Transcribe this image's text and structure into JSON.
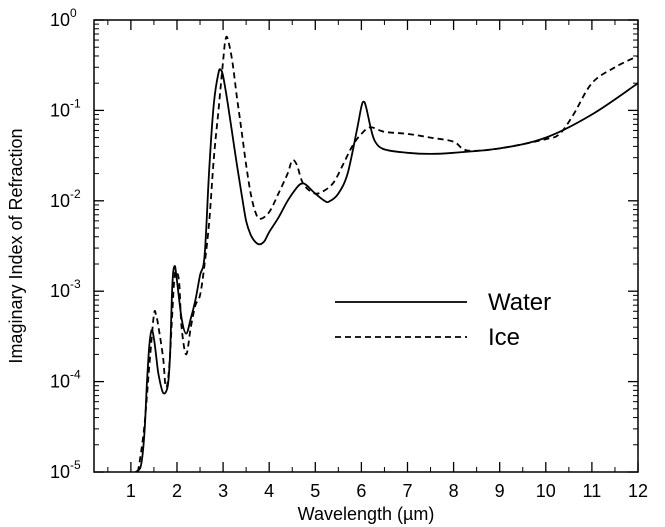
{
  "chart_data": {
    "type": "line",
    "title": "",
    "xlabel": "Wavelength (µm)",
    "ylabel": "Imaginary Index of Refraction",
    "x_scale": "linear",
    "y_scale": "log",
    "xlim": [
      0.2,
      12
    ],
    "ylim": [
      1e-05,
      1
    ],
    "x_ticks": [
      1,
      2,
      3,
      4,
      5,
      6,
      7,
      8,
      9,
      10,
      11,
      12
    ],
    "x_tick_labels": [
      "1",
      "2",
      "3",
      "4",
      "5",
      "6",
      "7",
      "8",
      "9",
      "10",
      "11",
      "12"
    ],
    "y_ticks": [
      {
        "value": 1e-05,
        "base": "10",
        "exp": "-5"
      },
      {
        "value": 0.0001,
        "base": "10",
        "exp": "-4"
      },
      {
        "value": 0.001,
        "base": "10",
        "exp": "-3"
      },
      {
        "value": 0.01,
        "base": "10",
        "exp": "-2"
      },
      {
        "value": 0.1,
        "base": "10",
        "exp": "-1"
      },
      {
        "value": 1,
        "base": "10",
        "exp": "0"
      }
    ],
    "grid": false,
    "legend_position": "center-right",
    "series": [
      {
        "name": "Water",
        "style": "solid",
        "color": "#000000",
        "points": [
          [
            1.1,
            1e-05
          ],
          [
            1.2,
            1.1e-05
          ],
          [
            1.25,
            1.5e-05
          ],
          [
            1.3,
            3e-05
          ],
          [
            1.35,
            0.0001
          ],
          [
            1.4,
            0.00025
          ],
          [
            1.45,
            0.00037
          ],
          [
            1.5,
            0.0003
          ],
          [
            1.55,
            0.00019
          ],
          [
            1.6,
            0.00012
          ],
          [
            1.7,
            7.5e-05
          ],
          [
            1.8,
            9e-05
          ],
          [
            1.85,
            0.0002
          ],
          [
            1.9,
            0.0012
          ],
          [
            1.95,
            0.0019
          ],
          [
            2.0,
            0.0013
          ],
          [
            2.1,
            0.0005
          ],
          [
            2.2,
            0.00034
          ],
          [
            2.3,
            0.0005
          ],
          [
            2.4,
            0.0008
          ],
          [
            2.5,
            0.0015
          ],
          [
            2.6,
            0.0025
          ],
          [
            2.7,
            0.023
          ],
          [
            2.8,
            0.12
          ],
          [
            2.9,
            0.26
          ],
          [
            2.95,
            0.28
          ],
          [
            3.0,
            0.24
          ],
          [
            3.1,
            0.12
          ],
          [
            3.2,
            0.055
          ],
          [
            3.3,
            0.025
          ],
          [
            3.4,
            0.012
          ],
          [
            3.5,
            0.006
          ],
          [
            3.6,
            0.0042
          ],
          [
            3.7,
            0.0035
          ],
          [
            3.8,
            0.0033
          ],
          [
            3.9,
            0.0036
          ],
          [
            4.0,
            0.0045
          ],
          [
            4.2,
            0.0065
          ],
          [
            4.4,
            0.01
          ],
          [
            4.6,
            0.014
          ],
          [
            4.7,
            0.0155
          ],
          [
            4.8,
            0.015
          ],
          [
            5.0,
            0.012
          ],
          [
            5.2,
            0.01
          ],
          [
            5.3,
            0.0098
          ],
          [
            5.5,
            0.012
          ],
          [
            5.7,
            0.02
          ],
          [
            5.9,
            0.06
          ],
          [
            6.0,
            0.11
          ],
          [
            6.05,
            0.125
          ],
          [
            6.1,
            0.11
          ],
          [
            6.2,
            0.065
          ],
          [
            6.3,
            0.045
          ],
          [
            6.5,
            0.037
          ],
          [
            7.0,
            0.034
          ],
          [
            7.5,
            0.033
          ],
          [
            8.0,
            0.034
          ],
          [
            9.0,
            0.038
          ],
          [
            10.0,
            0.05
          ],
          [
            11.0,
            0.09
          ],
          [
            12.0,
            0.2
          ]
        ]
      },
      {
        "name": "Ice",
        "style": "dashed",
        "color": "#000000",
        "points": [
          [
            1.15,
            1e-05
          ],
          [
            1.2,
            1.4e-05
          ],
          [
            1.3,
            3.5e-05
          ],
          [
            1.4,
            0.00015
          ],
          [
            1.5,
            0.00055
          ],
          [
            1.55,
            0.00053
          ],
          [
            1.6,
            0.0004
          ],
          [
            1.7,
            0.00018
          ],
          [
            1.75,
            9e-05
          ],
          [
            1.8,
            0.0001
          ],
          [
            1.85,
            0.0002
          ],
          [
            1.9,
            0.0006
          ],
          [
            1.95,
            0.0015
          ],
          [
            2.0,
            0.0016
          ],
          [
            2.05,
            0.0012
          ],
          [
            2.1,
            0.0004
          ],
          [
            2.2,
            0.0002
          ],
          [
            2.3,
            0.0004
          ],
          [
            2.4,
            0.0007
          ],
          [
            2.5,
            0.0009
          ],
          [
            2.6,
            0.002
          ],
          [
            2.7,
            0.006
          ],
          [
            2.8,
            0.03
          ],
          [
            2.9,
            0.1
          ],
          [
            3.0,
            0.35
          ],
          [
            3.05,
            0.6
          ],
          [
            3.1,
            0.62
          ],
          [
            3.2,
            0.35
          ],
          [
            3.3,
            0.14
          ],
          [
            3.4,
            0.06
          ],
          [
            3.5,
            0.025
          ],
          [
            3.6,
            0.012
          ],
          [
            3.7,
            0.0075
          ],
          [
            3.8,
            0.0063
          ],
          [
            4.0,
            0.0075
          ],
          [
            4.2,
            0.012
          ],
          [
            4.4,
            0.02
          ],
          [
            4.5,
            0.028
          ],
          [
            4.6,
            0.025
          ],
          [
            4.7,
            0.017
          ],
          [
            4.8,
            0.014
          ],
          [
            5.0,
            0.012
          ],
          [
            5.2,
            0.013
          ],
          [
            5.4,
            0.016
          ],
          [
            5.6,
            0.025
          ],
          [
            5.8,
            0.04
          ],
          [
            6.0,
            0.055
          ],
          [
            6.2,
            0.065
          ],
          [
            6.5,
            0.058
          ],
          [
            7.0,
            0.055
          ],
          [
            7.5,
            0.05
          ],
          [
            8.0,
            0.045
          ],
          [
            8.3,
            0.036
          ],
          [
            9.0,
            0.038
          ],
          [
            10.0,
            0.048
          ],
          [
            10.3,
            0.055
          ],
          [
            10.6,
            0.09
          ],
          [
            11.0,
            0.2
          ],
          [
            11.5,
            0.3
          ],
          [
            12.0,
            0.4
          ]
        ]
      }
    ]
  }
}
